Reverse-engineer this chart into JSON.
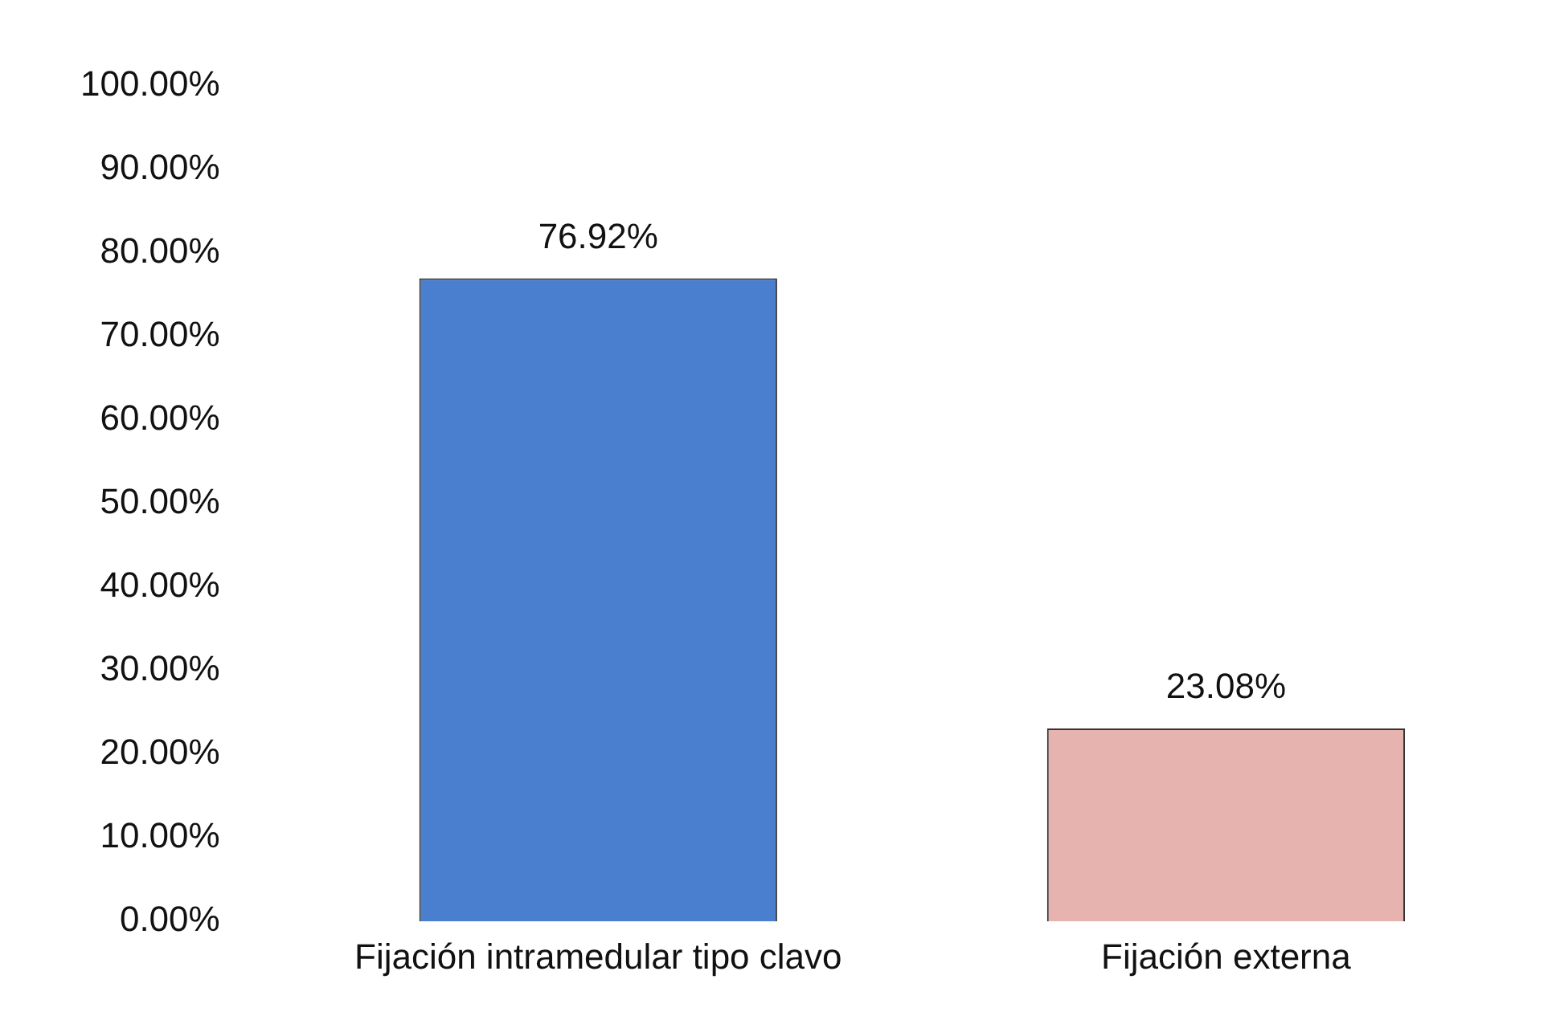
{
  "chart_data": {
    "type": "bar",
    "categories": [
      "Fijación intramedular tipo clavo",
      "Fijación externa"
    ],
    "values": [
      76.92,
      23.08
    ],
    "colors": [
      "#4a7fcf",
      "#e6b3ae"
    ],
    "value_labels": [
      "76.92%",
      "23.08%"
    ],
    "ylim": [
      0,
      100
    ],
    "yticks": [
      {
        "value": 0,
        "label": "0.00%"
      },
      {
        "value": 10,
        "label": "10.00%"
      },
      {
        "value": 20,
        "label": "20.00%"
      },
      {
        "value": 30,
        "label": "30.00%"
      },
      {
        "value": 40,
        "label": "40.00%"
      },
      {
        "value": 50,
        "label": "50.00%"
      },
      {
        "value": 60,
        "label": "60.00%"
      },
      {
        "value": 70,
        "label": "70.00%"
      },
      {
        "value": 80,
        "label": "80.00%"
      },
      {
        "value": 90,
        "label": "90.00%"
      },
      {
        "value": 100,
        "label": "100.00%"
      }
    ],
    "grid": false,
    "legend": false
  }
}
